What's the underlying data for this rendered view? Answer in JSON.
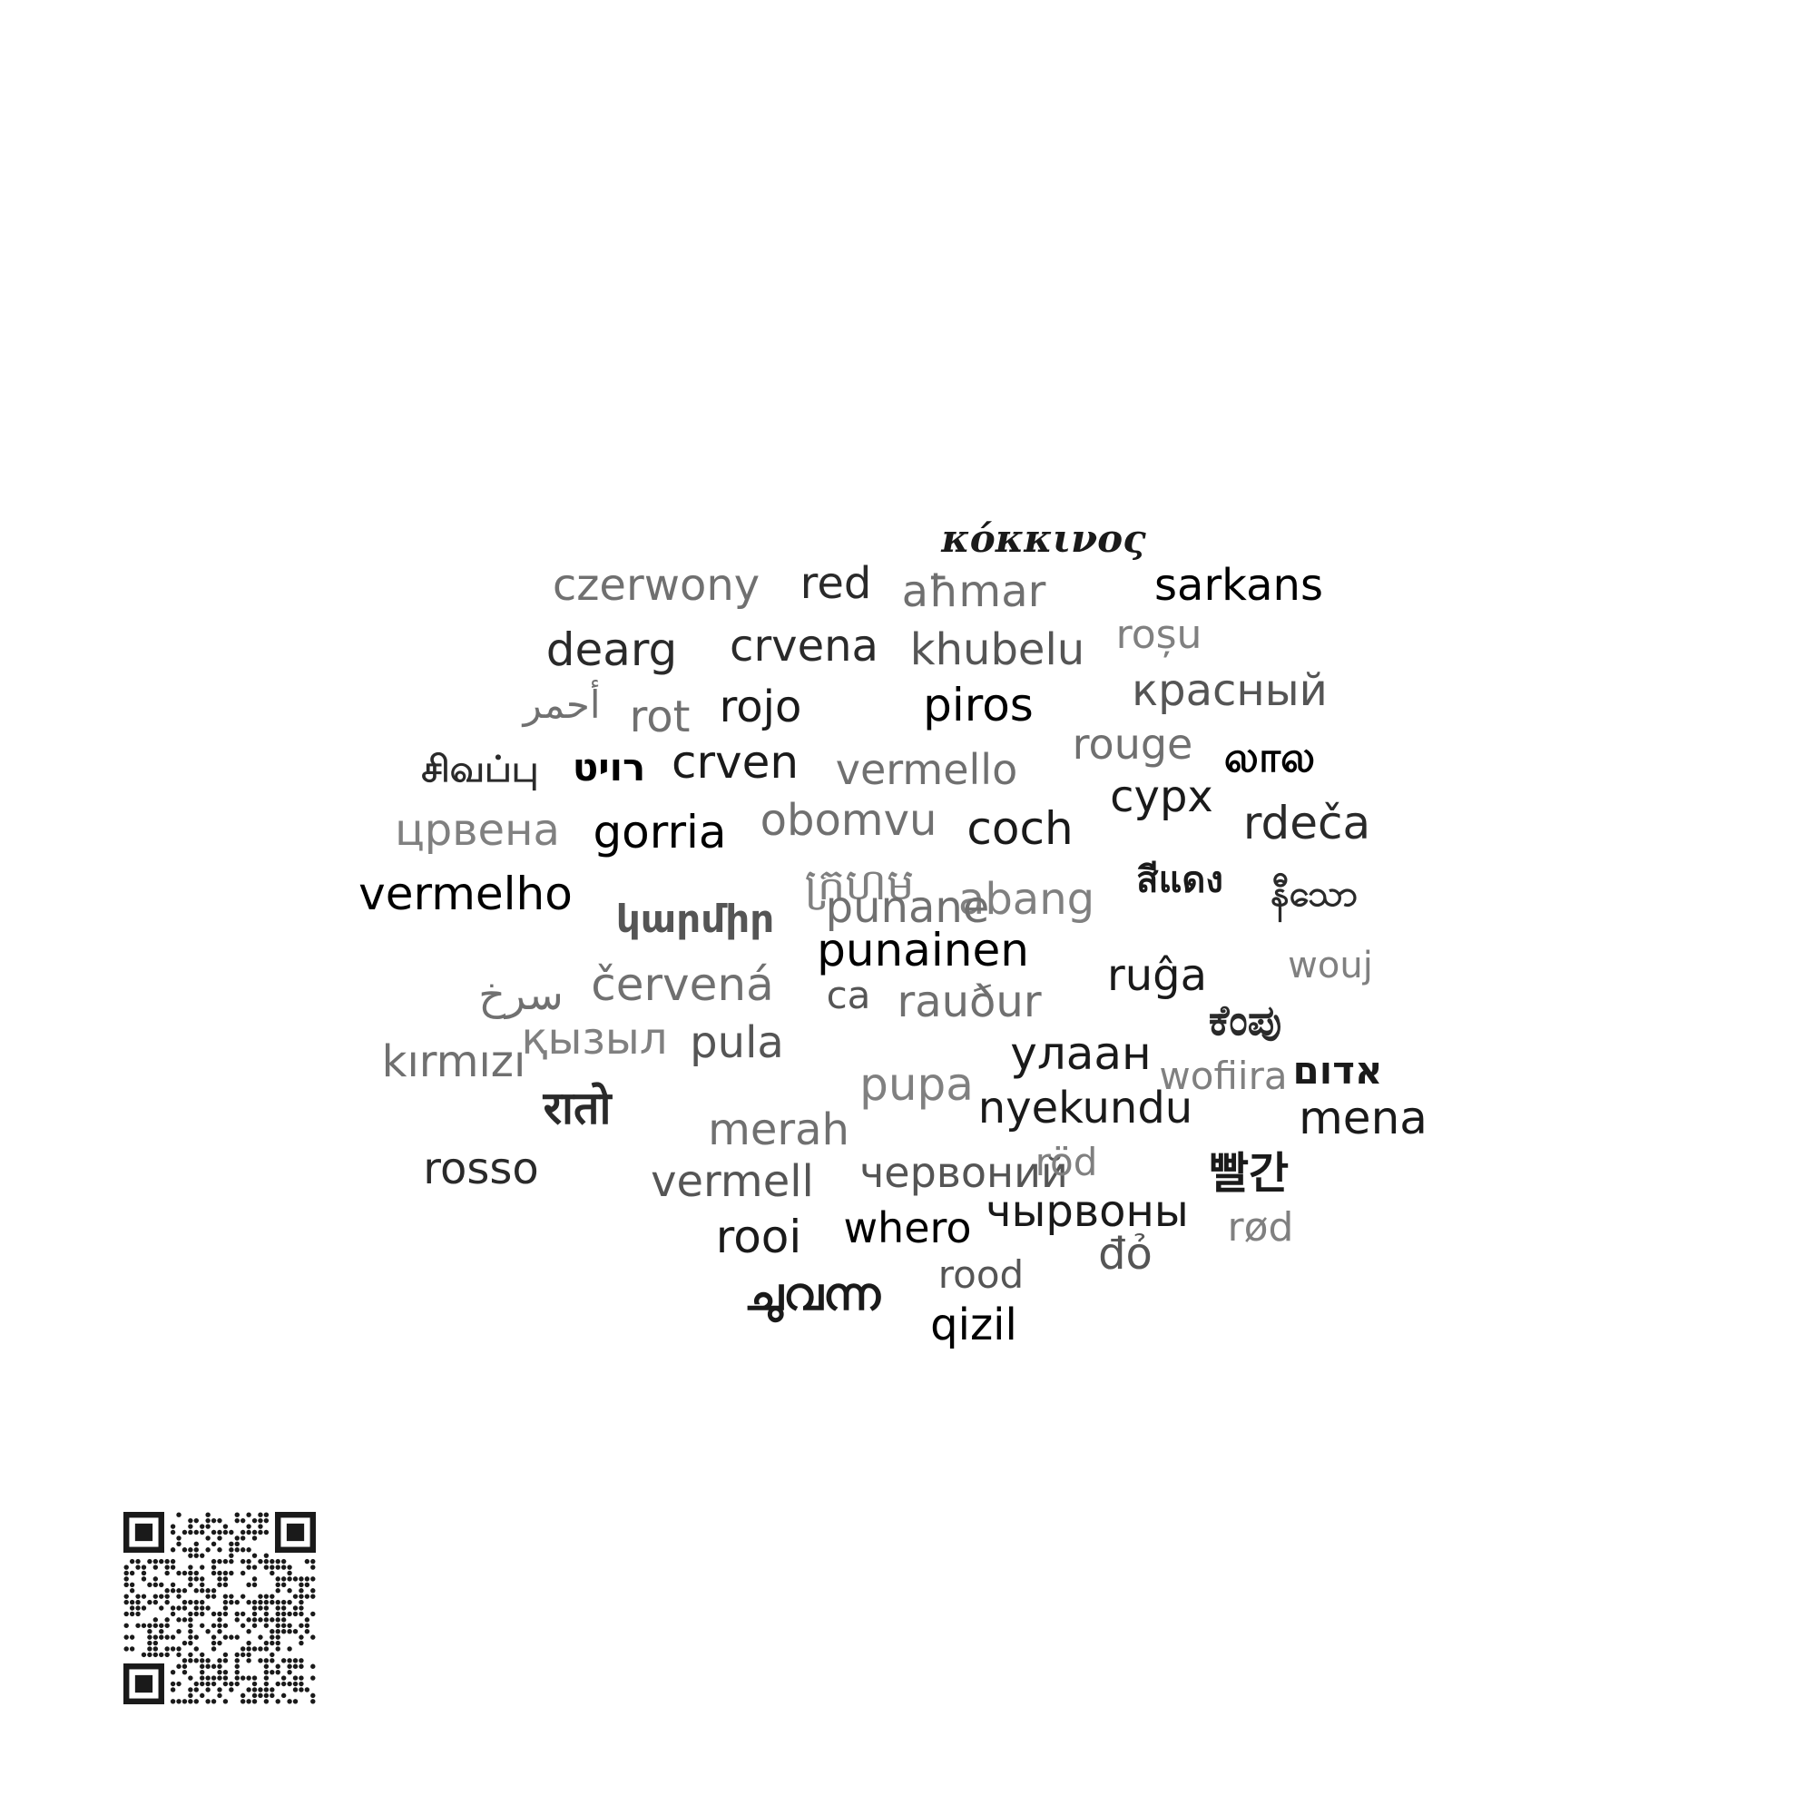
{
  "background": "#ffffff",
  "words": [
    {
      "text": "κόκκινος",
      "color": "#1a1a1a",
      "serif": true
    },
    {
      "text": "czerwony",
      "color": "#707070"
    },
    {
      "text": "red",
      "color": "#2a2a2a"
    },
    {
      "text": "aħmar",
      "color": "#707070"
    },
    {
      "text": "sarkans",
      "color": "#000000"
    },
    {
      "text": "dearg",
      "color": "#2a2a2a"
    },
    {
      "text": "crvena",
      "color": "#2a2a2a"
    },
    {
      "text": "khubelu",
      "color": "#555555"
    },
    {
      "text": "roșu",
      "color": "#808080"
    },
    {
      "text": "أحمر",
      "color": "#707070"
    },
    {
      "text": "rot",
      "color": "#707070"
    },
    {
      "text": "rojo",
      "color": "#1a1a1a"
    },
    {
      "text": "piros",
      "color": "#000000"
    },
    {
      "text": "красный",
      "color": "#555555"
    },
    {
      "text": "rouge",
      "color": "#707070"
    },
    {
      "text": "லால",
      "color": "#000000",
      "bold": true
    },
    {
      "text": "சிவப்பு",
      "color": "#2a2a2a",
      "bold": true
    },
    {
      "text": "רויט",
      "color": "#000000",
      "bold": true
    },
    {
      "text": "crven",
      "color": "#1a1a1a"
    },
    {
      "text": "vermello",
      "color": "#707070"
    },
    {
      "text": "сурх",
      "color": "#1a1a1a"
    },
    {
      "text": "црвена",
      "color": "#808080"
    },
    {
      "text": "gorria",
      "color": "#000000"
    },
    {
      "text": "obomvu",
      "color": "#707070"
    },
    {
      "text": "coch",
      "color": "#1a1a1a"
    },
    {
      "text": "rdeča",
      "color": "#2a2a2a"
    },
    {
      "text": "vermelho",
      "color": "#000000"
    },
    {
      "text": "ក្រហម",
      "color": "#808080"
    },
    {
      "text": "abang",
      "color": "#808080"
    },
    {
      "text": "สีแดง",
      "color": "#1a1a1a",
      "bold": true
    },
    {
      "text": "နီသော",
      "color": "#2a2a2a",
      "bold": true
    },
    {
      "text": "կարմիր",
      "color": "#555555",
      "bold": true
    },
    {
      "text": "punainen",
      "color": "#000000"
    },
    {
      "text": "سرخ",
      "color": "#707070"
    },
    {
      "text": "červená",
      "color": "#707070"
    },
    {
      "text": "ca",
      "color": "#555555"
    },
    {
      "text": "rauður",
      "color": "#707070"
    },
    {
      "text": "ruĝa",
      "color": "#1a1a1a"
    },
    {
      "text": "wouj",
      "color": "#808080"
    },
    {
      "text": "ಕೆಂಪು",
      "color": "#2a2a2a",
      "bold": true
    },
    {
      "text": "қызыл",
      "color": "#808080"
    },
    {
      "text": "pula",
      "color": "#555555"
    },
    {
      "text": "kırmızı",
      "color": "#707070"
    },
    {
      "text": "улаан",
      "color": "#1a1a1a"
    },
    {
      "text": "pupa",
      "color": "#808080"
    },
    {
      "text": "wofiira",
      "color": "#808080"
    },
    {
      "text": "אדום",
      "color": "#1a1a1a",
      "bold": true
    },
    {
      "text": "रातो",
      "color": "#2a2a2a",
      "bold": true
    },
    {
      "text": "nyekundu",
      "color": "#1a1a1a"
    },
    {
      "text": "mena",
      "color": "#1a1a1a"
    },
    {
      "text": "merah",
      "color": "#707070"
    },
    {
      "text": "rosso",
      "color": "#2a2a2a"
    },
    {
      "text": "vermell",
      "color": "#555555"
    },
    {
      "text": "червоний",
      "color": "#555555"
    },
    {
      "text": "röd",
      "color": "#808080"
    },
    {
      "text": "빨간",
      "color": "#1a1a1a",
      "bold": true
    },
    {
      "text": "чырвоны",
      "color": "#1a1a1a"
    },
    {
      "text": "rooi",
      "color": "#1a1a1a"
    },
    {
      "text": "whero",
      "color": "#000000"
    },
    {
      "text": "rød",
      "color": "#808080"
    },
    {
      "text": "đỏ",
      "color": "#555555"
    },
    {
      "text": "rood",
      "color": "#555555"
    },
    {
      "text": "ചുവന്ന",
      "color": "#1a1a1a",
      "bold": true
    },
    {
      "text": "qizil",
      "color": "#000000"
    },
    {
      "text": "punane",
      "color": "#707070"
    }
  ]
}
